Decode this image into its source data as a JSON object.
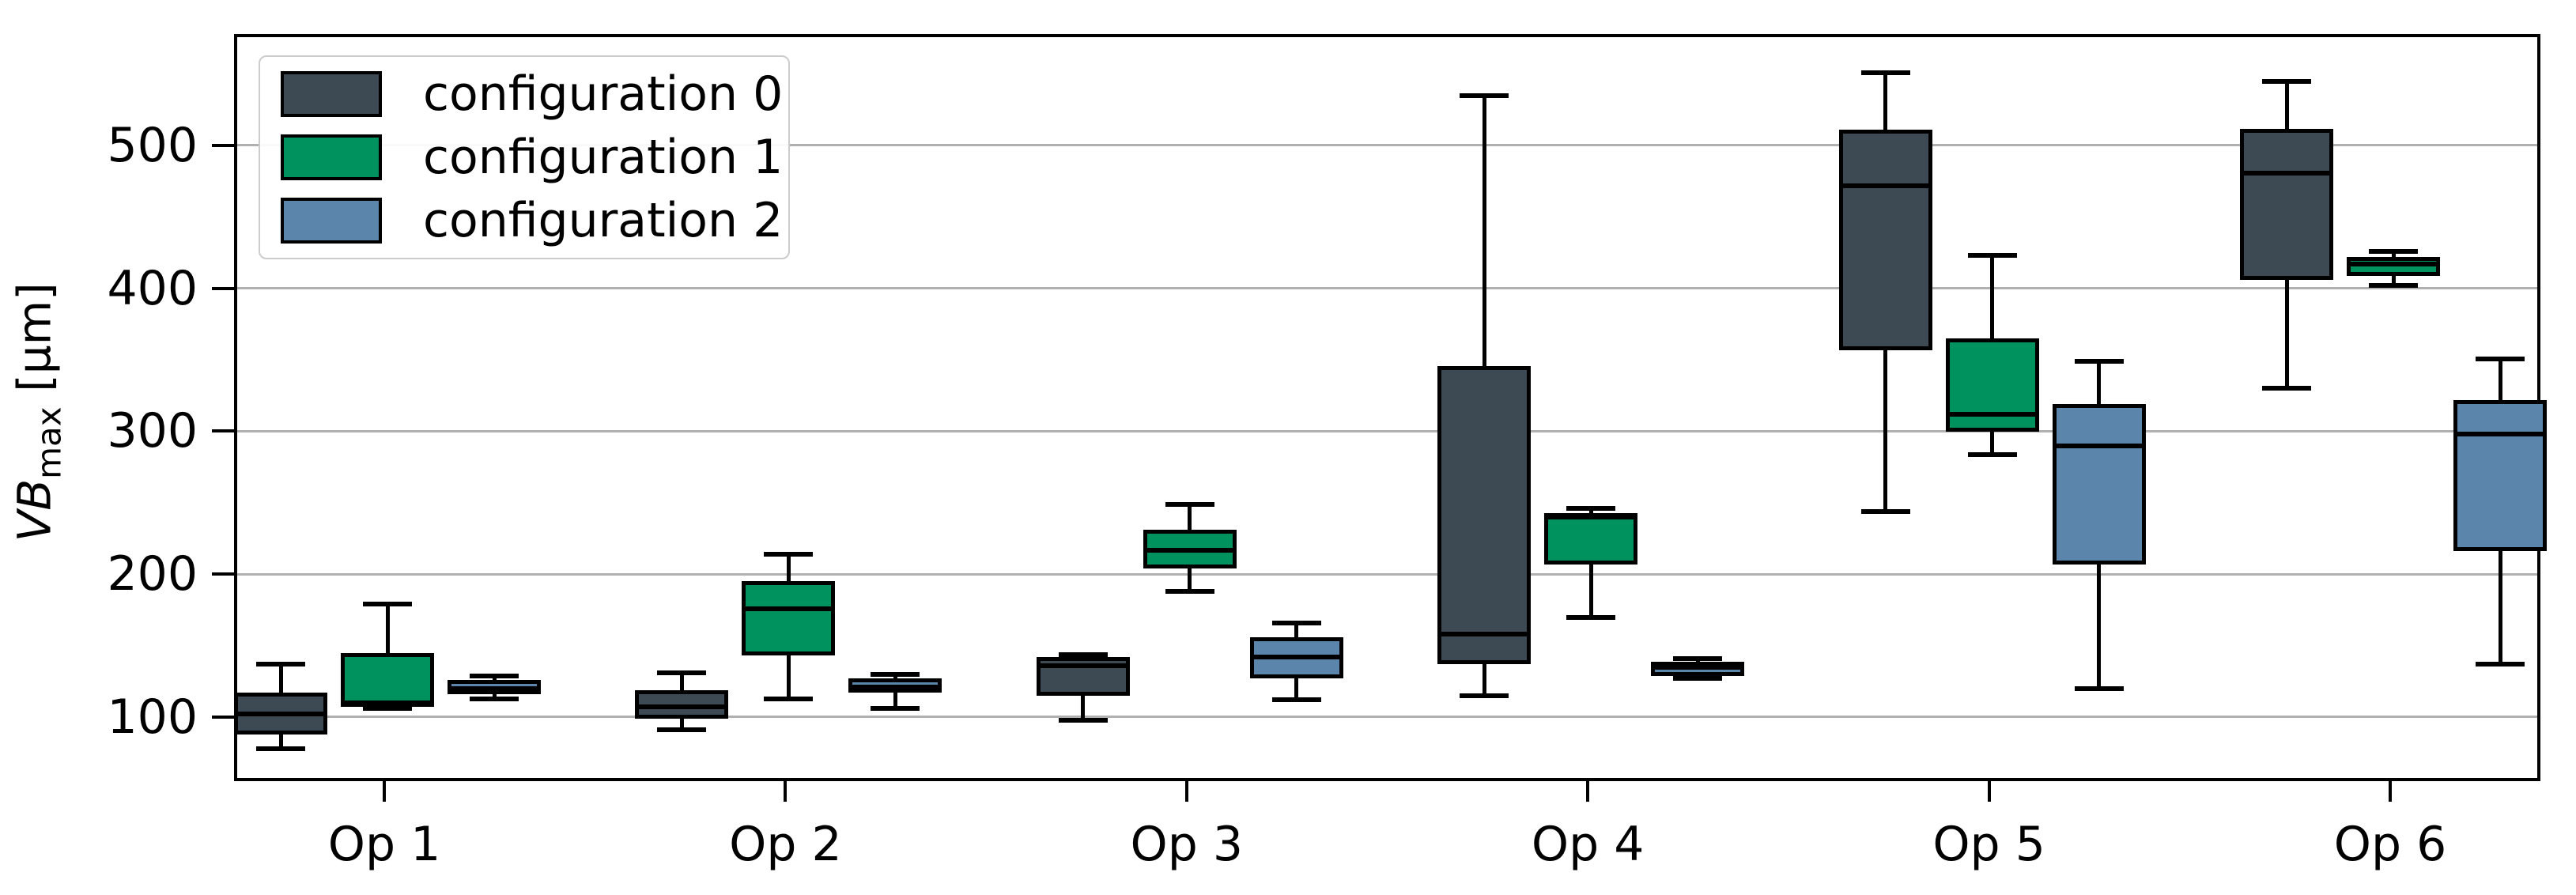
{
  "figure": {
    "background": "#ffffff",
    "ylabel": {
      "var": "VB",
      "sub": "max",
      "unit": " [µm]"
    }
  },
  "chart_data": {
    "type": "boxplot",
    "title": "",
    "xlabel": "",
    "ylabel": "VB_max [µm]",
    "categories": [
      "Op 1",
      "Op 2",
      "Op 3",
      "Op 4",
      "Op 5",
      "Op 6"
    ],
    "yticks": [
      100,
      200,
      300,
      400,
      500
    ],
    "ylim": [
      55,
      578
    ],
    "grid": true,
    "grid_color": "#b0b0b0",
    "edge_color": "#000000",
    "legend_position": "upper left",
    "box_stats_order": [
      "min",
      "q1",
      "median",
      "q3",
      "max"
    ],
    "series": [
      {
        "name": "configuration 0",
        "color": "#3d4a54",
        "boxes": [
          [
            80,
            90,
            104,
            119,
            139
          ],
          [
            93,
            101,
            109,
            121,
            133
          ],
          [
            100,
            117,
            138,
            144,
            146
          ],
          [
            117,
            139,
            160,
            348,
            537
          ],
          [
            246,
            359,
            474,
            513,
            553
          ],
          [
            332,
            408,
            483,
            514,
            547
          ]
        ]
      },
      {
        "name": "configuration 1",
        "color": "#00925e",
        "boxes": [
          [
            108,
            109,
            112,
            147,
            181
          ],
          [
            115,
            145,
            178,
            197,
            216
          ],
          [
            190,
            206,
            219,
            233,
            251
          ],
          [
            172,
            209,
            242,
            245,
            248
          ],
          [
            286,
            302,
            314,
            367,
            425
          ],
          [
            404,
            411,
            419,
            424,
            428
          ]
        ]
      },
      {
        "name": "configuration 2",
        "color": "#5b85aa",
        "boxes": [
          [
            115,
            118,
            122,
            128,
            131
          ],
          [
            108,
            119,
            123,
            129,
            132
          ],
          [
            114,
            129,
            144,
            158,
            168
          ],
          [
            129,
            131,
            137,
            141,
            143
          ],
          [
            122,
            209,
            292,
            321,
            351
          ],
          [
            139,
            218,
            300,
            324,
            353
          ]
        ]
      }
    ]
  }
}
